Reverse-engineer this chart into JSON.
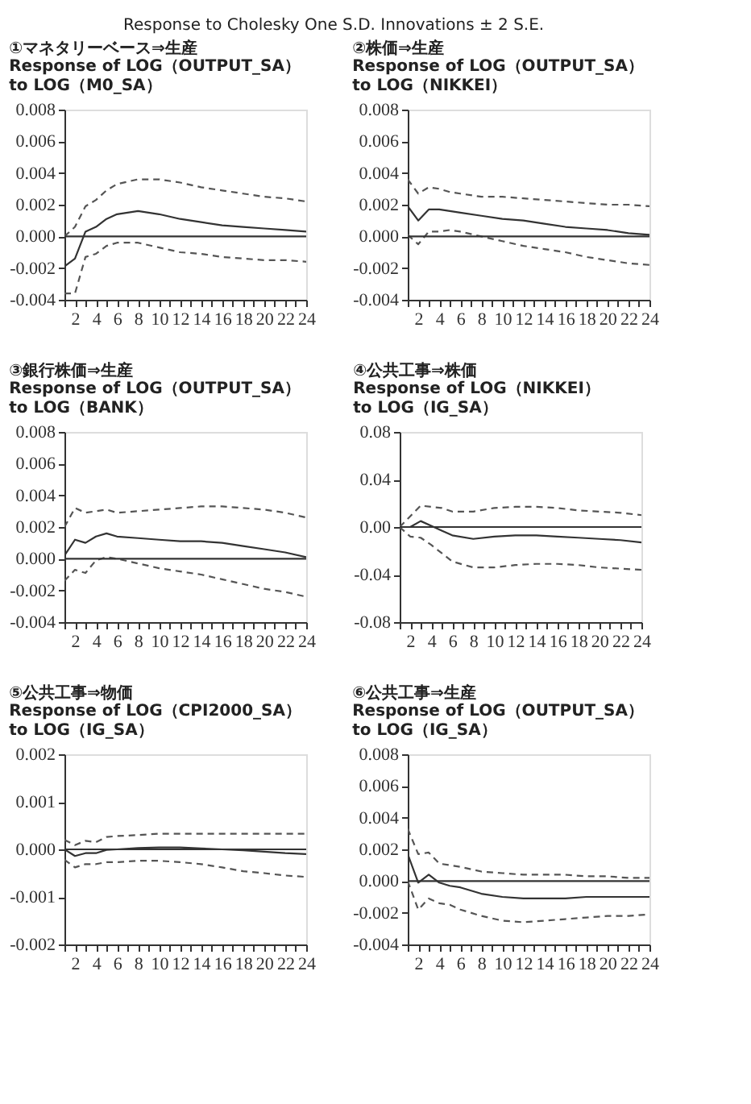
{
  "chart_data": [
    {
      "type": "line",
      "title": "①マネタリーベース⇒生産",
      "subtitle": "Response of LOG（OUTPUT_SA）\nto LOG（M0_SA）",
      "annotations": [
        "Response to Cholesky One S.D. Innovations ± 2 S.E."
      ],
      "x": [
        1,
        2,
        3,
        4,
        5,
        6,
        8,
        10,
        12,
        14,
        16,
        18,
        20,
        22,
        24
      ],
      "xlim": [
        1,
        24
      ],
      "xticks": [
        {
          "value": 1,
          "label": null
        },
        2,
        {
          "value": 3,
          "label": null
        },
        4,
        {
          "value": 5,
          "label": null
        },
        6,
        {
          "value": 7,
          "label": null
        },
        8,
        {
          "value": 9,
          "label": null
        },
        10,
        {
          "value": 11,
          "label": null
        },
        12,
        {
          "value": 13,
          "label": null
        },
        14,
        {
          "value": 15,
          "label": null
        },
        16,
        {
          "value": 17,
          "label": null
        },
        18,
        {
          "value": 19,
          "label": null
        },
        20,
        {
          "value": 21,
          "label": null
        },
        22,
        {
          "value": 23,
          "label": null
        },
        24
      ],
      "ylim": [
        -0.004,
        0.008
      ],
      "yticks": [
        {
          "value": -0.004,
          "label": "-0.004"
        },
        {
          "value": -0.002,
          "label": "-0.002"
        },
        {
          "value": 0,
          "label": "0.000"
        },
        {
          "value": 0.002,
          "label": "0.002"
        },
        {
          "value": 0.004,
          "label": "0.004"
        },
        {
          "value": 0.006,
          "label": "0.006"
        },
        {
          "value": 0.008,
          "label": "0.008"
        }
      ],
      "ref_lines": [
        {
          "axis": "y",
          "value": 0,
          "color": "#333333",
          "line_style": "solid"
        }
      ],
      "series": [
        {
          "color": "#333333",
          "line_style": "solid",
          "values": [
            -0.0019,
            -0.0014,
            0.0003,
            0.0006,
            0.0011,
            0.0014,
            0.0016,
            0.0014,
            0.0011,
            0.0009,
            0.0007,
            0.0006,
            0.0005,
            0.0004,
            0.0003
          ]
        },
        {
          "color": "#555555",
          "line_style": "dashed",
          "values": [
            0.0,
            0.0006,
            0.0019,
            0.0023,
            0.0029,
            0.0033,
            0.0036,
            0.0036,
            0.0034,
            0.0031,
            0.0029,
            0.0027,
            0.0025,
            0.0024,
            0.0022
          ]
        },
        {
          "color": "#555555",
          "line_style": "dashed",
          "values": [
            -0.0036,
            -0.0036,
            -0.0013,
            -0.0011,
            -0.0006,
            -0.0004,
            -0.0004,
            -0.0007,
            -0.001,
            -0.0011,
            -0.0013,
            -0.0014,
            -0.0015,
            -0.0015,
            -0.0016
          ]
        }
      ]
    },
    {
      "type": "line",
      "title": "②株価⇒生産",
      "subtitle": "Response of LOG（OUTPUT_SA）\nto LOG（NIKKEI）",
      "x": [
        1,
        2,
        3,
        4,
        5,
        6,
        8,
        10,
        12,
        14,
        16,
        18,
        20,
        22,
        24
      ],
      "xlim": [
        1,
        24
      ],
      "xticks": [
        {
          "value": 1,
          "label": null
        },
        2,
        {
          "value": 3,
          "label": null
        },
        4,
        {
          "value": 5,
          "label": null
        },
        6,
        {
          "value": 7,
          "label": null
        },
        8,
        {
          "value": 9,
          "label": null
        },
        10,
        {
          "value": 11,
          "label": null
        },
        12,
        {
          "value": 13,
          "label": null
        },
        14,
        {
          "value": 15,
          "label": null
        },
        16,
        {
          "value": 17,
          "label": null
        },
        18,
        {
          "value": 19,
          "label": null
        },
        20,
        {
          "value": 21,
          "label": null
        },
        22,
        {
          "value": 23,
          "label": null
        },
        24
      ],
      "ylim": [
        -0.004,
        0.008
      ],
      "yticks": [
        {
          "value": -0.004,
          "label": "-0.004"
        },
        {
          "value": -0.002,
          "label": "-0.002"
        },
        {
          "value": 0,
          "label": "0.000"
        },
        {
          "value": 0.002,
          "label": "0.002"
        },
        {
          "value": 0.004,
          "label": "0.004"
        },
        {
          "value": 0.006,
          "label": "0.006"
        },
        {
          "value": 0.008,
          "label": "0.008"
        }
      ],
      "ref_lines": [
        {
          "axis": "y",
          "value": 0,
          "color": "#333333",
          "line_style": "solid"
        }
      ],
      "series": [
        {
          "color": "#333333",
          "line_style": "solid",
          "values": [
            0.0019,
            0.001,
            0.0017,
            0.0017,
            0.0016,
            0.0015,
            0.0013,
            0.0011,
            0.001,
            0.0008,
            0.0006,
            0.0005,
            0.0004,
            0.0002,
            0.0001
          ]
        },
        {
          "color": "#555555",
          "line_style": "dashed",
          "values": [
            0.0036,
            0.0027,
            0.0031,
            0.003,
            0.0028,
            0.0027,
            0.0025,
            0.0025,
            0.0024,
            0.0023,
            0.0022,
            0.0021,
            0.002,
            0.002,
            0.0019
          ]
        },
        {
          "color": "#555555",
          "line_style": "dashed",
          "values": [
            0.0001,
            -0.0005,
            0.0003,
            0.0003,
            0.0004,
            0.0003,
            0.0,
            -0.0003,
            -0.0006,
            -0.0008,
            -0.001,
            -0.0013,
            -0.0015,
            -0.0017,
            -0.0018
          ]
        }
      ]
    },
    {
      "type": "line",
      "title": "③銀行株価⇒生産",
      "subtitle": "Response of LOG（OUTPUT_SA）\nto LOG（BANK）",
      "x": [
        1,
        2,
        3,
        4,
        5,
        6,
        8,
        10,
        12,
        14,
        16,
        18,
        20,
        22,
        24
      ],
      "xlim": [
        1,
        24
      ],
      "xticks": [
        {
          "value": 1,
          "label": null
        },
        2,
        {
          "value": 3,
          "label": null
        },
        4,
        {
          "value": 5,
          "label": null
        },
        6,
        {
          "value": 7,
          "label": null
        },
        8,
        {
          "value": 9,
          "label": null
        },
        10,
        {
          "value": 11,
          "label": null
        },
        12,
        {
          "value": 13,
          "label": null
        },
        14,
        {
          "value": 15,
          "label": null
        },
        16,
        {
          "value": 17,
          "label": null
        },
        18,
        {
          "value": 19,
          "label": null
        },
        20,
        {
          "value": 21,
          "label": null
        },
        22,
        {
          "value": 23,
          "label": null
        },
        24
      ],
      "ylim": [
        -0.004,
        0.008
      ],
      "yticks": [
        {
          "value": -0.004,
          "label": "-0.004"
        },
        {
          "value": -0.002,
          "label": "-0.002"
        },
        {
          "value": 0,
          "label": "0.000"
        },
        {
          "value": 0.002,
          "label": "0.002"
        },
        {
          "value": 0.004,
          "label": "0.004"
        },
        {
          "value": 0.006,
          "label": "0.006"
        },
        {
          "value": 0.008,
          "label": "0.008"
        }
      ],
      "ref_lines": [
        {
          "axis": "y",
          "value": 0,
          "color": "#333333",
          "line_style": "solid"
        }
      ],
      "series": [
        {
          "color": "#333333",
          "line_style": "solid",
          "values": [
            0.0002,
            0.0012,
            0.001,
            0.0014,
            0.0016,
            0.0014,
            0.0013,
            0.0012,
            0.0011,
            0.0011,
            0.001,
            0.0008,
            0.0006,
            0.0004,
            0.0001
          ]
        },
        {
          "color": "#555555",
          "line_style": "dashed",
          "values": [
            0.002,
            0.0032,
            0.0029,
            0.003,
            0.0031,
            0.0029,
            0.003,
            0.0031,
            0.0032,
            0.0033,
            0.0033,
            0.0032,
            0.0031,
            0.0029,
            0.0026
          ]
        },
        {
          "color": "#555555",
          "line_style": "dashed",
          "values": [
            -0.0014,
            -0.0007,
            -0.0009,
            -0.0001,
            0.0001,
            0.0,
            -0.0003,
            -0.0006,
            -0.0008,
            -0.001,
            -0.0013,
            -0.0016,
            -0.0019,
            -0.0021,
            -0.0024
          ]
        }
      ]
    },
    {
      "type": "line",
      "title": "④公共工事⇒株価",
      "subtitle": "Response of LOG（NIKKEI）\nto LOG（IG_SA）",
      "x": [
        1,
        2,
        3,
        4,
        5,
        6,
        8,
        10,
        12,
        14,
        16,
        18,
        20,
        22,
        24
      ],
      "xlim": [
        1,
        24
      ],
      "xticks": [
        {
          "value": 1,
          "label": null
        },
        2,
        {
          "value": 3,
          "label": null
        },
        4,
        {
          "value": 5,
          "label": null
        },
        6,
        {
          "value": 7,
          "label": null
        },
        8,
        {
          "value": 9,
          "label": null
        },
        10,
        {
          "value": 11,
          "label": null
        },
        12,
        {
          "value": 13,
          "label": null
        },
        14,
        {
          "value": 15,
          "label": null
        },
        16,
        {
          "value": 17,
          "label": null
        },
        18,
        {
          "value": 19,
          "label": null
        },
        20,
        {
          "value": 21,
          "label": null
        },
        22,
        {
          "value": 23,
          "label": null
        },
        24
      ],
      "ylim": [
        -0.08,
        0.08
      ],
      "yticks": [
        {
          "value": -0.08,
          "label": "-0.08"
        },
        {
          "value": -0.04,
          "label": "-0.04"
        },
        {
          "value": 0,
          "label": "0.00"
        },
        {
          "value": 0.04,
          "label": "0.04"
        },
        {
          "value": 0.08,
          "label": "0.08"
        }
      ],
      "ref_lines": [
        {
          "axis": "y",
          "value": 0,
          "color": "#333333",
          "line_style": "solid"
        }
      ],
      "series": [
        {
          "color": "#333333",
          "line_style": "solid",
          "values": [
            0.0,
            0.0,
            0.005,
            0.001,
            -0.003,
            -0.007,
            -0.01,
            -0.008,
            -0.007,
            -0.007,
            -0.008,
            -0.009,
            -0.01,
            -0.011,
            -0.013
          ]
        },
        {
          "color": "#555555",
          "line_style": "dashed",
          "values": [
            0.0,
            0.009,
            0.018,
            0.017,
            0.016,
            0.013,
            0.013,
            0.016,
            0.017,
            0.017,
            0.016,
            0.014,
            0.013,
            0.012,
            0.01
          ]
        },
        {
          "color": "#555555",
          "line_style": "dashed",
          "values": [
            0.0,
            -0.008,
            -0.009,
            -0.015,
            -0.022,
            -0.029,
            -0.034,
            -0.034,
            -0.032,
            -0.031,
            -0.031,
            -0.032,
            -0.034,
            -0.035,
            -0.036
          ]
        }
      ]
    },
    {
      "type": "line",
      "title": "⑤公共工事⇒物価",
      "subtitle": "Response of LOG（CPI2000_SA）\nto LOG（IG_SA）",
      "x": [
        1,
        2,
        3,
        4,
        5,
        6,
        8,
        10,
        12,
        14,
        16,
        18,
        20,
        22,
        24
      ],
      "xlim": [
        1,
        24
      ],
      "xticks": [
        {
          "value": 1,
          "label": null
        },
        2,
        {
          "value": 3,
          "label": null
        },
        4,
        {
          "value": 5,
          "label": null
        },
        6,
        {
          "value": 7,
          "label": null
        },
        8,
        {
          "value": 9,
          "label": null
        },
        10,
        {
          "value": 11,
          "label": null
        },
        12,
        {
          "value": 13,
          "label": null
        },
        14,
        {
          "value": 15,
          "label": null
        },
        16,
        {
          "value": 17,
          "label": null
        },
        18,
        {
          "value": 19,
          "label": null
        },
        20,
        {
          "value": 21,
          "label": null
        },
        22,
        {
          "value": 23,
          "label": null
        },
        24
      ],
      "ylim": [
        -0.002,
        0.002
      ],
      "yticks": [
        {
          "value": -0.002,
          "label": "-0.002"
        },
        {
          "value": -0.001,
          "label": "-0.001"
        },
        {
          "value": 0,
          "label": "0.000"
        },
        {
          "value": 0.001,
          "label": "0.001"
        },
        {
          "value": 0.002,
          "label": "0.002"
        }
      ],
      "ref_lines": [
        {
          "axis": "y",
          "value": 0,
          "color": "#333333",
          "line_style": "solid"
        }
      ],
      "series": [
        {
          "color": "#333333",
          "line_style": "solid",
          "values": [
            0.0,
            -0.00014,
            -8e-05,
            -8e-05,
            -1e-05,
            0.0,
            3e-05,
            4e-05,
            4e-05,
            2e-05,
            0.0,
            -2e-05,
            -5e-05,
            -8e-05,
            -0.0001
          ]
        },
        {
          "color": "#555555",
          "line_style": "dashed",
          "values": [
            0.0002,
            9e-05,
            0.00018,
            0.00015,
            0.00026,
            0.00028,
            0.0003,
            0.00033,
            0.00033,
            0.00033,
            0.00033,
            0.00033,
            0.00033,
            0.00033,
            0.00033
          ]
        },
        {
          "color": "#555555",
          "line_style": "dashed",
          "values": [
            -0.00022,
            -0.00038,
            -0.00031,
            -0.00031,
            -0.00027,
            -0.00027,
            -0.00024,
            -0.00024,
            -0.00027,
            -0.00031,
            -0.00038,
            -0.00046,
            -0.0005,
            -0.00055,
            -0.00058
          ]
        }
      ]
    },
    {
      "type": "line",
      "title": "⑥公共工事⇒生産",
      "subtitle": "Response of LOG（OUTPUT_SA）\nto LOG（IG_SA）",
      "x": [
        1,
        2,
        3,
        4,
        5,
        6,
        8,
        10,
        12,
        14,
        16,
        18,
        20,
        22,
        24
      ],
      "xlim": [
        1,
        24
      ],
      "xticks": [
        {
          "value": 1,
          "label": null
        },
        2,
        {
          "value": 3,
          "label": null
        },
        4,
        {
          "value": 5,
          "label": null
        },
        6,
        {
          "value": 7,
          "label": null
        },
        8,
        {
          "value": 9,
          "label": null
        },
        10,
        {
          "value": 11,
          "label": null
        },
        12,
        {
          "value": 13,
          "label": null
        },
        14,
        {
          "value": 15,
          "label": null
        },
        16,
        {
          "value": 17,
          "label": null
        },
        18,
        {
          "value": 19,
          "label": null
        },
        20,
        {
          "value": 21,
          "label": null
        },
        22,
        {
          "value": 23,
          "label": null
        },
        24
      ],
      "ylim": [
        -0.004,
        0.008
      ],
      "yticks": [
        {
          "value": -0.004,
          "label": "-0.004"
        },
        {
          "value": -0.002,
          "label": "-0.002"
        },
        {
          "value": 0,
          "label": "0.000"
        },
        {
          "value": 0.002,
          "label": "0.002"
        },
        {
          "value": 0.004,
          "label": "0.004"
        },
        {
          "value": 0.006,
          "label": "0.006"
        },
        {
          "value": 0.008,
          "label": "0.008"
        }
      ],
      "ref_lines": [
        {
          "axis": "y",
          "value": 0,
          "color": "#333333",
          "line_style": "solid"
        }
      ],
      "series": [
        {
          "color": "#333333",
          "line_style": "solid",
          "values": [
            0.0017,
            -0.0001,
            0.0004,
            -0.0001,
            -0.0003,
            -0.0004,
            -0.0008,
            -0.001,
            -0.0011,
            -0.0011,
            -0.0011,
            -0.001,
            -0.001,
            -0.001,
            -0.001
          ]
        },
        {
          "color": "#555555",
          "line_style": "dashed",
          "values": [
            0.0033,
            0.0017,
            0.0018,
            0.0011,
            0.001,
            0.0009,
            0.0006,
            0.0005,
            0.0004,
            0.0004,
            0.0004,
            0.0003,
            0.0003,
            0.0002,
            0.0002
          ]
        },
        {
          "color": "#555555",
          "line_style": "dashed",
          "values": [
            0.0,
            -0.0018,
            -0.0011,
            -0.0014,
            -0.0015,
            -0.0018,
            -0.0022,
            -0.0025,
            -0.0026,
            -0.0025,
            -0.0024,
            -0.0023,
            -0.0022,
            -0.0022,
            -0.0021
          ]
        }
      ]
    }
  ]
}
